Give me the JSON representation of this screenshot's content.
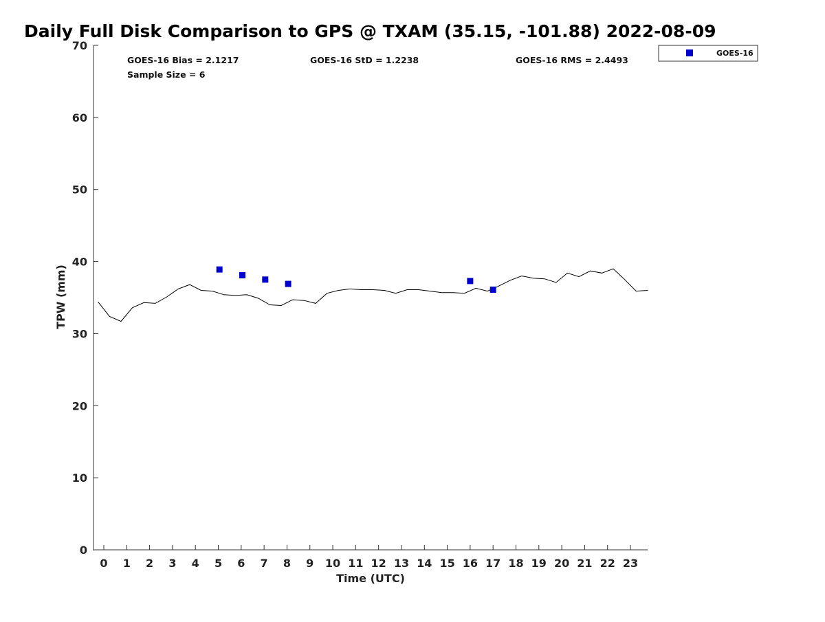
{
  "chart_data": {
    "type": "scatter",
    "title": "Daily Full Disk Comparison to GPS @ TXAM (35.15, -101.88) 2022-08-09",
    "xlabel": "Time (UTC)",
    "ylabel": "TPW (mm)",
    "xlim": [
      -0.45,
      23.75
    ],
    "ylim": [
      0,
      70
    ],
    "x_ticks": [
      0,
      1,
      2,
      3,
      4,
      5,
      6,
      7,
      8,
      9,
      10,
      11,
      12,
      13,
      14,
      15,
      16,
      17,
      18,
      19,
      20,
      21,
      22,
      23
    ],
    "y_ticks": [
      0,
      10,
      20,
      30,
      40,
      50,
      60,
      70
    ],
    "grid": false,
    "legend_position": "top-right-outside",
    "stats": {
      "bias": "GOES-16 Bias = 2.1217",
      "std": "GOES-16 StD = 1.2238",
      "rms": "GOES-16 RMS = 2.4493",
      "sample": "Sample Size = 6"
    },
    "series": [
      {
        "kind": "line",
        "color": "#000000",
        "x": [
          -0.25,
          0.25,
          0.75,
          1.25,
          1.75,
          2.25,
          2.75,
          3.25,
          3.75,
          4.25,
          4.75,
          5.25,
          5.75,
          6.25,
          6.75,
          7.25,
          7.75,
          8.25,
          8.75,
          9.25,
          9.75,
          10.25,
          10.75,
          11.25,
          11.75,
          12.25,
          12.75,
          13.25,
          13.75,
          14.25,
          14.75,
          15.25,
          15.75,
          16.25,
          16.75,
          17.25,
          17.75,
          18.25,
          18.75,
          19.25,
          19.75,
          20.25,
          20.75,
          21.25,
          21.75,
          22.25,
          22.75,
          23.25,
          23.75
        ],
        "y": [
          34.4,
          32.4,
          31.7,
          33.6,
          34.3,
          34.2,
          35.1,
          36.2,
          36.8,
          36.0,
          35.9,
          35.4,
          35.3,
          35.4,
          34.9,
          34.0,
          33.9,
          34.7,
          34.6,
          34.2,
          35.6,
          36.0,
          36.2,
          36.1,
          36.1,
          36.0,
          35.6,
          36.1,
          36.1,
          35.9,
          35.7,
          35.7,
          35.6,
          36.3,
          35.9,
          36.6,
          37.4,
          38.0,
          37.7,
          37.6,
          37.1,
          38.4,
          37.9,
          38.7,
          38.4,
          39.0,
          37.5,
          35.9,
          36.0
        ]
      },
      {
        "kind": "scatter",
        "name": "GOES-16",
        "color": "#0000cc",
        "marker": "square",
        "x": [
          5.05,
          6.05,
          7.05,
          8.05,
          16.0,
          17.0
        ],
        "y": [
          38.9,
          38.1,
          37.5,
          36.9,
          37.3,
          36.1
        ]
      }
    ]
  }
}
